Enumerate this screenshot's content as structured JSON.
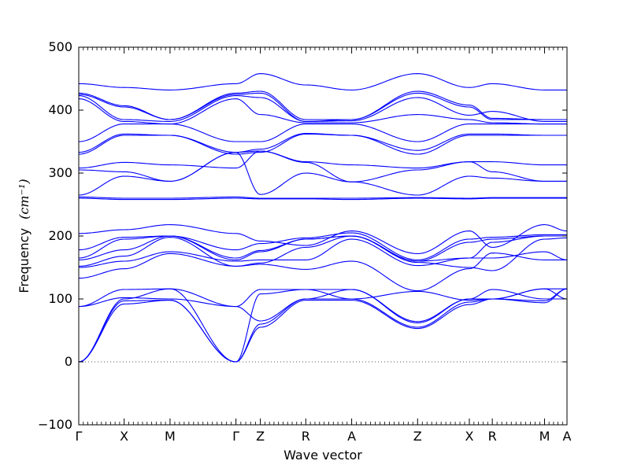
{
  "chart_data": {
    "type": "line",
    "xlabel": "Wave vector",
    "ylabel": "Frequency",
    "ylabel_unit": "(cm⁻¹)",
    "ylim": [
      -100,
      500
    ],
    "y_ticks": [
      -100,
      0,
      100,
      200,
      300,
      400,
      500
    ],
    "grid": false,
    "legend": "none",
    "line_color": "#0000ff",
    "zero_line_color": "#555555",
    "high_symmetry_points": [
      "Γ",
      "X",
      "M",
      "Γ",
      "Z",
      "R",
      "A",
      "Z",
      "X",
      "R",
      "M",
      "A"
    ],
    "x_positions": [
      0,
      0.93,
      1.87,
      3.22,
      3.72,
      4.65,
      5.59,
      6.94,
      8.0,
      8.47,
      9.54,
      10.0
    ],
    "series": [
      {
        "values": [
          0,
          92,
          98,
          0,
          55,
          98,
          98,
          53,
          91,
          100,
          94,
          116
        ]
      },
      {
        "values": [
          0,
          97,
          98,
          0,
          60,
          100,
          100,
          55,
          95,
          100,
          97,
          116
        ]
      },
      {
        "values": [
          0,
          100,
          116,
          0,
          108,
          115,
          115,
          62,
          100,
          115,
          100,
          100
        ]
      },
      {
        "values": [
          88,
          102,
          100,
          88,
          65,
          100,
          115,
          64,
          100,
          100,
          116,
          116
        ]
      },
      {
        "values": [
          88,
          115,
          116,
          88,
          115,
          115,
          100,
          112,
          98,
          100,
          116,
          100
        ]
      },
      {
        "values": [
          133,
          148,
          172,
          152,
          155,
          147,
          160,
          113,
          148,
          173,
          162,
          162
        ]
      },
      {
        "values": [
          150,
          160,
          175,
          160,
          162,
          162,
          195,
          153,
          165,
          165,
          175,
          162
        ]
      },
      {
        "values": [
          152,
          168,
          198,
          152,
          157,
          182,
          200,
          158,
          150,
          145,
          195,
          197
        ]
      },
      {
        "values": [
          162,
          178,
          200,
          162,
          175,
          195,
          200,
          160,
          165,
          190,
          200,
          200
        ]
      },
      {
        "values": [
          165,
          195,
          200,
          165,
          177,
          195,
          200,
          160,
          190,
          195,
          200,
          200
        ]
      },
      {
        "values": [
          178,
          198,
          200,
          178,
          188,
          197,
          205,
          162,
          195,
          198,
          202,
          202
        ]
      },
      {
        "values": [
          204,
          210,
          218,
          204,
          192,
          185,
          208,
          172,
          208,
          182,
          218,
          208
        ]
      },
      {
        "values": [
          260,
          258,
          258,
          260,
          259,
          259,
          258,
          260,
          259,
          260,
          260,
          260
        ]
      },
      {
        "values": [
          262,
          260,
          260,
          262,
          260,
          260,
          260,
          261,
          260,
          261,
          261,
          261
        ]
      },
      {
        "values": [
          265,
          295,
          287,
          333,
          266,
          300,
          286,
          265,
          295,
          292,
          287,
          287
        ]
      },
      {
        "values": [
          305,
          302,
          287,
          333,
          335,
          317,
          286,
          305,
          318,
          302,
          287,
          287
        ]
      },
      {
        "values": [
          308,
          317,
          313,
          308,
          335,
          318,
          313,
          308,
          318,
          318,
          313,
          313
        ]
      },
      {
        "values": [
          330,
          360,
          360,
          330,
          333,
          362,
          360,
          330,
          360,
          360,
          360,
          360
        ]
      },
      {
        "values": [
          333,
          362,
          360,
          333,
          338,
          363,
          360,
          336,
          362,
          362,
          360,
          360
        ]
      },
      {
        "values": [
          350,
          378,
          378,
          350,
          350,
          378,
          378,
          350,
          378,
          378,
          378,
          378
        ]
      },
      {
        "values": [
          418,
          382,
          378,
          418,
          393,
          380,
          380,
          393,
          385,
          380,
          378,
          378
        ]
      },
      {
        "values": [
          423,
          385,
          382,
          423,
          420,
          382,
          383,
          420,
          392,
          398,
          382,
          382
        ]
      },
      {
        "values": [
          425,
          405,
          385,
          425,
          427,
          382,
          385,
          427,
          405,
          385,
          385,
          385
        ]
      },
      {
        "values": [
          427,
          407,
          385,
          427,
          430,
          385,
          385,
          430,
          408,
          387,
          385,
          385
        ]
      },
      {
        "values": [
          442,
          436,
          432,
          442,
          458,
          440,
          432,
          458,
          436,
          442,
          432,
          432
        ]
      }
    ]
  }
}
